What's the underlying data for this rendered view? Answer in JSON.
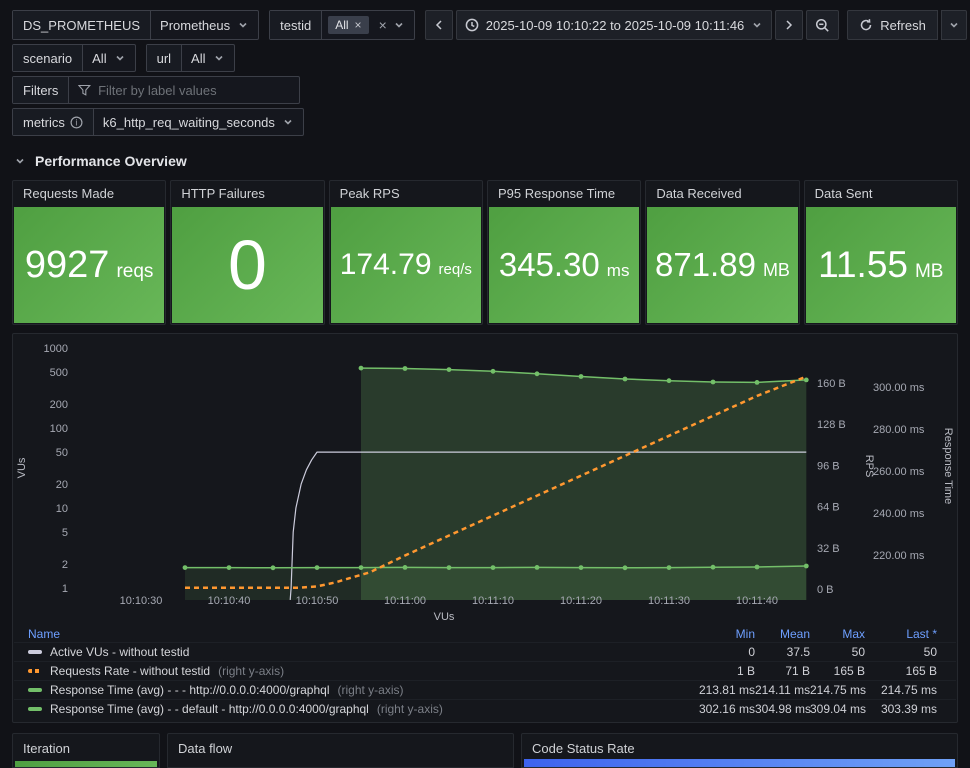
{
  "toolbar": {
    "ds_label": "DS_PROMETHEUS",
    "ds_value": "Prometheus",
    "testid_label": "testid",
    "testid_chip": "All",
    "scenario_label": "scenario",
    "scenario_value": "All",
    "url_label": "url",
    "url_value": "All",
    "filters_label": "Filters",
    "filters_placeholder": "Filter by label values",
    "metrics_label": "metrics",
    "metrics_value": "k6_http_req_waiting_seconds",
    "time_range": "2025-10-09 10:10:22 to 2025-10-09 10:11:46",
    "refresh_label": "Refresh"
  },
  "section_title": "Performance Overview",
  "stats": [
    {
      "title": "Requests Made",
      "value": "9927",
      "unit": "reqs"
    },
    {
      "title": "HTTP Failures",
      "value": "0",
      "unit": ""
    },
    {
      "title": "Peak RPS",
      "value": "174.79",
      "unit": "req/s"
    },
    {
      "title": "P95 Response Time",
      "value": "345.30",
      "unit": "ms"
    },
    {
      "title": "Data Received",
      "value": "871.89",
      "unit": "MB"
    },
    {
      "title": "Data Sent",
      "value": "11.55",
      "unit": "MB"
    }
  ],
  "colors": {
    "accent_green": "#73BF69",
    "accent_orange": "#FF9830",
    "vus_gray": "#ccccdc",
    "link_blue": "#6E9FFF",
    "stat_gradient": [
      "#4f9f41",
      "#68b758"
    ],
    "code_status_gradient": [
      "#3d63ee",
      "#6fa1f7"
    ]
  },
  "chart_data": {
    "type": "line",
    "time_base": "10:10:00",
    "x_axis": {
      "label": "VUs",
      "range_seconds": [
        22.8,
        106
      ],
      "ticks": [
        {
          "t": 30,
          "label": "10:10:30"
        },
        {
          "t": 40,
          "label": "10:10:40"
        },
        {
          "t": 50,
          "label": "10:10:50"
        },
        {
          "t": 60,
          "label": "10:11:00"
        },
        {
          "t": 70,
          "label": "10:11:10"
        },
        {
          "t": 80,
          "label": "10:11:20"
        },
        {
          "t": 90,
          "label": "10:11:30"
        },
        {
          "t": 100,
          "label": "10:11:40"
        }
      ]
    },
    "y_axes": [
      {
        "id": "vus",
        "label": "VUs",
        "side": "left",
        "scale": "log",
        "ticks": [
          {
            "v": 1000,
            "label": "1000"
          },
          {
            "v": 500,
            "label": "500"
          },
          {
            "v": 200,
            "label": "200"
          },
          {
            "v": 100,
            "label": "100"
          },
          {
            "v": 50,
            "label": "50"
          },
          {
            "v": 20,
            "label": "20"
          },
          {
            "v": 10,
            "label": "10"
          },
          {
            "v": 5,
            "label": "5"
          },
          {
            "v": 2,
            "label": "2"
          },
          {
            "v": 1,
            "label": "1"
          }
        ]
      },
      {
        "id": "rps",
        "label": "RPS",
        "side": "right",
        "scale": "linear",
        "ticks": [
          {
            "v": 160,
            "label": "160 B"
          },
          {
            "v": 128,
            "label": "128 B"
          },
          {
            "v": 96,
            "label": "96 B"
          },
          {
            "v": 64,
            "label": "64 B"
          },
          {
            "v": 32,
            "label": "32 B"
          },
          {
            "v": 0,
            "label": "0 B"
          }
        ]
      },
      {
        "id": "rt",
        "label": "Response Time",
        "side": "right",
        "scale": "linear",
        "ticks": [
          {
            "v": 300,
            "label": "300.00 ms"
          },
          {
            "v": 280,
            "label": "280.00 ms"
          },
          {
            "v": 260,
            "label": "260.00 ms"
          },
          {
            "v": 240,
            "label": "240.00 ms"
          },
          {
            "v": 220,
            "label": "220.00 ms"
          }
        ]
      }
    ],
    "series": [
      {
        "name": "Active VUs - without testid",
        "axis": "vus",
        "color": "#ccccdc",
        "width": 1.2,
        "dash": "",
        "fill": 0,
        "markers": false,
        "points": [
          [
            46.95,
            0.71
          ],
          [
            47.06,
            1
          ],
          [
            47.3,
            5
          ],
          [
            47.6,
            10
          ],
          [
            48.2,
            20
          ],
          [
            48.8,
            30
          ],
          [
            49.4,
            40
          ],
          [
            50,
            50
          ],
          [
            105.6,
            50
          ]
        ]
      },
      {
        "name": "Requests Rate - without testid",
        "axis": "rps",
        "color": "#FF9830",
        "width": 2.5,
        "dash": "5,4",
        "fill": 0,
        "markers": false,
        "points": [
          [
            35,
            1
          ],
          [
            48,
            1
          ],
          [
            50,
            2
          ],
          [
            52,
            5
          ],
          [
            54,
            9
          ],
          [
            56,
            13
          ],
          [
            60,
            26
          ],
          [
            70,
            57
          ],
          [
            80,
            88
          ],
          [
            90,
            119
          ],
          [
            100,
            150
          ],
          [
            105.6,
            165
          ]
        ]
      },
      {
        "name": "Response Time (avg) - - - http://0.0.0.0:4000/graphql",
        "axis": "rt",
        "color": "#73BF69",
        "width": 1.5,
        "dash": "",
        "fill": 0.12,
        "markers": true,
        "points": [
          [
            35,
            214
          ],
          [
            40,
            214
          ],
          [
            45,
            213.9
          ],
          [
            50,
            214
          ],
          [
            55,
            214
          ],
          [
            60,
            214.1
          ],
          [
            65,
            214
          ],
          [
            70,
            214
          ],
          [
            75,
            214.1
          ],
          [
            80,
            214
          ],
          [
            85,
            213.9
          ],
          [
            90,
            214
          ],
          [
            95,
            214.2
          ],
          [
            100,
            214.3
          ],
          [
            105.6,
            214.75
          ]
        ]
      },
      {
        "name": "Response Time (avg) - - default - http://0.0.0.0:4000/graphql",
        "axis": "rt",
        "color": "#73BF69",
        "width": 1.5,
        "dash": "",
        "fill": 0.22,
        "markers": true,
        "points": [
          [
            55,
            309
          ],
          [
            60,
            308.8
          ],
          [
            65,
            308.3
          ],
          [
            70,
            307.5
          ],
          [
            75,
            306.3
          ],
          [
            80,
            305
          ],
          [
            85,
            303.8
          ],
          [
            90,
            303
          ],
          [
            95,
            302.4
          ],
          [
            100,
            302.2
          ],
          [
            105.6,
            303.39
          ]
        ]
      }
    ]
  },
  "legend": {
    "columns": [
      "Name",
      "Min",
      "Mean",
      "Max",
      "Last *"
    ],
    "rows": [
      {
        "name": "Active VUs - without testid",
        "suffix": "",
        "min": "0",
        "mean": "37.5",
        "max": "50",
        "last": "50"
      },
      {
        "name": "Requests Rate - without testid",
        "suffix": "(right y-axis)",
        "min": "1 B",
        "mean": "71 B",
        "max": "165 B",
        "last": "165 B"
      },
      {
        "name": "Response Time (avg) - - - http://0.0.0.0:4000/graphql",
        "suffix": "(right y-axis)",
        "min": "213.81 ms",
        "mean": "214.11 ms",
        "max": "214.75 ms",
        "last": "214.75 ms"
      },
      {
        "name": "Response Time (avg) - - default - http://0.0.0.0:4000/graphql",
        "suffix": "(right y-axis)",
        "min": "302.16 ms",
        "mean": "304.98 ms",
        "max": "309.04 ms",
        "last": "303.39 ms"
      }
    ]
  },
  "bottom_panels": [
    "Iteration",
    "Data flow",
    "Code Status Rate"
  ]
}
